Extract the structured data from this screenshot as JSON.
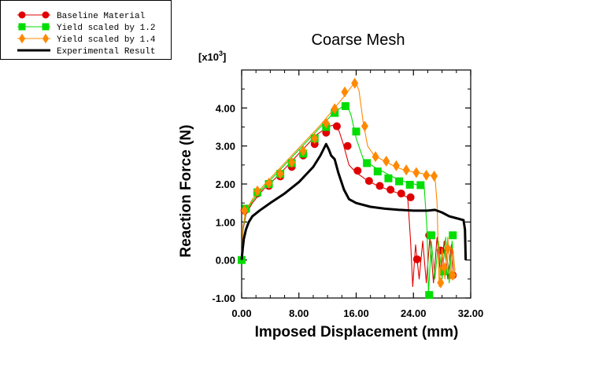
{
  "chart_data": {
    "type": "line",
    "title": "Coarse Mesh",
    "xlabel": "Imposed Displacement (mm)",
    "ylabel": "Reaction Force (N)",
    "y_multiplier_label": "[x10",
    "y_multiplier_exp": "3",
    "y_multiplier_close": "]",
    "xlim": [
      0,
      32
    ],
    "ylim": [
      -1,
      5
    ],
    "x_ticks": [
      0,
      8,
      16,
      24,
      32
    ],
    "x_tick_labels": [
      "0.00",
      "8.00",
      "16.00",
      "24.00",
      "32.00"
    ],
    "y_ticks": [
      -1,
      0,
      1,
      2,
      3,
      4
    ],
    "y_tick_labels": [
      "-1.00",
      "0.00",
      "1.00",
      "2.00",
      "3.00",
      "4.00"
    ],
    "grid": false,
    "legend_position": "top-left outside",
    "series": [
      {
        "name": "Baseline Material",
        "color": "#e00000",
        "marker": "circle",
        "line": [
          [
            0,
            0
          ],
          [
            0.2,
            0.8
          ],
          [
            0.6,
            1.2
          ],
          [
            1.5,
            1.5
          ],
          [
            3,
            1.85
          ],
          [
            5,
            2.2
          ],
          [
            7,
            2.6
          ],
          [
            9,
            3.0
          ],
          [
            10.5,
            3.3
          ],
          [
            12,
            3.5
          ],
          [
            12.8,
            3.55
          ],
          [
            13.6,
            3.4
          ],
          [
            14.2,
            3.05
          ],
          [
            15,
            2.5
          ],
          [
            16,
            2.3
          ],
          [
            17.5,
            2.1
          ],
          [
            19,
            1.95
          ],
          [
            20.5,
            1.85
          ],
          [
            22,
            1.75
          ],
          [
            23.2,
            1.65
          ],
          [
            23.6,
            0.5
          ],
          [
            23.9,
            -0.7
          ],
          [
            24.3,
            0.4
          ],
          [
            24.8,
            -0.5
          ],
          [
            25.3,
            0.5
          ],
          [
            25.8,
            -0.6
          ],
          [
            26.3,
            0.6
          ],
          [
            26.8,
            -0.6
          ],
          [
            27.3,
            0.6
          ],
          [
            27.8,
            -0.4
          ],
          [
            28.3,
            0.5
          ],
          [
            28.8,
            -0.5
          ],
          [
            29.3,
            0.4
          ],
          [
            29.6,
            -0.4
          ]
        ],
        "markers": [
          [
            0.4,
            1.3
          ],
          [
            2.2,
            1.75
          ],
          [
            3.8,
            1.95
          ],
          [
            5.4,
            2.2
          ],
          [
            7,
            2.45
          ],
          [
            8.6,
            2.75
          ],
          [
            10.2,
            3.05
          ],
          [
            11.8,
            3.35
          ],
          [
            13.3,
            3.52
          ],
          [
            14.8,
            3.0
          ],
          [
            16.2,
            2.35
          ],
          [
            17.8,
            2.08
          ],
          [
            19.3,
            1.95
          ],
          [
            20.8,
            1.85
          ],
          [
            22.3,
            1.75
          ],
          [
            23.6,
            1.65
          ],
          [
            24.5,
            0.02
          ],
          [
            26.2,
            0.65
          ],
          [
            27.8,
            0.25
          ],
          [
            29.5,
            -0.4
          ]
        ]
      },
      {
        "name": "Yield scaled by 1.2",
        "color": "#00dd00",
        "marker": "square",
        "line": [
          [
            0,
            0
          ],
          [
            0.2,
            0.85
          ],
          [
            0.6,
            1.25
          ],
          [
            1.5,
            1.55
          ],
          [
            3,
            1.9
          ],
          [
            5,
            2.3
          ],
          [
            7,
            2.7
          ],
          [
            9,
            3.1
          ],
          [
            11,
            3.5
          ],
          [
            13,
            3.9
          ],
          [
            14.2,
            4.05
          ],
          [
            14.8,
            4.05
          ],
          [
            15.3,
            3.8
          ],
          [
            16,
            3.2
          ],
          [
            17,
            2.65
          ],
          [
            18.5,
            2.45
          ],
          [
            20,
            2.3
          ],
          [
            21.5,
            2.15
          ],
          [
            23,
            2.05
          ],
          [
            24.5,
            1.98
          ],
          [
            25.5,
            1.95
          ],
          [
            25.9,
            0.8
          ],
          [
            26.1,
            -0.9
          ],
          [
            26.5,
            0.5
          ],
          [
            27,
            -0.5
          ],
          [
            27.5,
            0.5
          ],
          [
            28,
            -0.5
          ],
          [
            28.5,
            0.6
          ],
          [
            29,
            -0.6
          ],
          [
            29.4,
            0.5
          ],
          [
            29.8,
            -0.3
          ]
        ],
        "markers": [
          [
            0,
            0
          ],
          [
            0.6,
            1.35
          ],
          [
            2.2,
            1.78
          ],
          [
            3.8,
            2.0
          ],
          [
            5.4,
            2.27
          ],
          [
            7,
            2.55
          ],
          [
            8.6,
            2.8
          ],
          [
            10.2,
            3.2
          ],
          [
            11.8,
            3.5
          ],
          [
            13,
            3.87
          ],
          [
            14.5,
            4.05
          ],
          [
            16,
            3.38
          ],
          [
            17.5,
            2.55
          ],
          [
            19,
            2.33
          ],
          [
            20.5,
            2.15
          ],
          [
            22,
            2.07
          ],
          [
            23.5,
            1.98
          ],
          [
            25,
            1.97
          ],
          [
            26.2,
            -0.92
          ],
          [
            26.5,
            0.65
          ],
          [
            28.2,
            -0.3
          ],
          [
            29.5,
            0.65
          ]
        ]
      },
      {
        "name": "Yield scaled by 1.4",
        "color": "#ff8800",
        "marker": "diamond",
        "line": [
          [
            0,
            0
          ],
          [
            0.2,
            0.9
          ],
          [
            0.6,
            1.3
          ],
          [
            1.5,
            1.6
          ],
          [
            3,
            1.95
          ],
          [
            5,
            2.35
          ],
          [
            7,
            2.75
          ],
          [
            9,
            3.15
          ],
          [
            11,
            3.55
          ],
          [
            13,
            4.0
          ],
          [
            14.5,
            4.35
          ],
          [
            15.5,
            4.6
          ],
          [
            16,
            4.65
          ],
          [
            16.4,
            4.45
          ],
          [
            17,
            3.6
          ],
          [
            17.6,
            3.0
          ],
          [
            18.5,
            2.75
          ],
          [
            20,
            2.6
          ],
          [
            21.5,
            2.45
          ],
          [
            23,
            2.35
          ],
          [
            24.5,
            2.3
          ],
          [
            26,
            2.25
          ],
          [
            27,
            2.2
          ],
          [
            27.3,
            1.5
          ],
          [
            27.6,
            -0.7
          ],
          [
            28,
            0.3
          ],
          [
            28.4,
            -0.5
          ],
          [
            28.8,
            0.6
          ],
          [
            29.2,
            -0.5
          ],
          [
            29.5,
            0.3
          ],
          [
            29.8,
            -0.3
          ]
        ],
        "markers": [
          [
            0.4,
            1.3
          ],
          [
            2.2,
            1.82
          ],
          [
            3.8,
            2.02
          ],
          [
            5.4,
            2.27
          ],
          [
            7,
            2.57
          ],
          [
            8.6,
            2.87
          ],
          [
            10.2,
            3.2
          ],
          [
            11.8,
            3.6
          ],
          [
            13,
            3.98
          ],
          [
            14.4,
            4.42
          ],
          [
            15.8,
            4.65
          ],
          [
            17.2,
            3.52
          ],
          [
            18.7,
            2.72
          ],
          [
            20.2,
            2.6
          ],
          [
            21.6,
            2.48
          ],
          [
            23,
            2.37
          ],
          [
            24.4,
            2.3
          ],
          [
            25.8,
            2.23
          ],
          [
            26.9,
            2.21
          ],
          [
            27.8,
            -0.6
          ],
          [
            28.3,
            -0.2
          ],
          [
            28.8,
            0.3
          ],
          [
            29.5,
            -0.4
          ]
        ]
      },
      {
        "name": "Experimental Result",
        "color": "#000000",
        "marker": "none",
        "line": [
          [
            0,
            0
          ],
          [
            0.15,
            0.3
          ],
          [
            0.3,
            0.55
          ],
          [
            0.6,
            0.8
          ],
          [
            1,
            1.0
          ],
          [
            1.5,
            1.15
          ],
          [
            2.5,
            1.3
          ],
          [
            4,
            1.5
          ],
          [
            6,
            1.75
          ],
          [
            8,
            2.05
          ],
          [
            10,
            2.45
          ],
          [
            11,
            2.75
          ],
          [
            11.8,
            3.05
          ],
          [
            12.2,
            2.9
          ],
          [
            12.5,
            2.75
          ],
          [
            13,
            2.65
          ],
          [
            13.5,
            2.3
          ],
          [
            14.3,
            1.85
          ],
          [
            15,
            1.6
          ],
          [
            16,
            1.5
          ],
          [
            18,
            1.4
          ],
          [
            20,
            1.35
          ],
          [
            22,
            1.32
          ],
          [
            24,
            1.3
          ],
          [
            26,
            1.3
          ],
          [
            27,
            1.32
          ],
          [
            28,
            1.25
          ],
          [
            29,
            1.15
          ],
          [
            30,
            1.1
          ],
          [
            31,
            1.05
          ],
          [
            31.2,
            0.8
          ],
          [
            31.3,
            0.0
          ]
        ],
        "markers": []
      }
    ]
  }
}
